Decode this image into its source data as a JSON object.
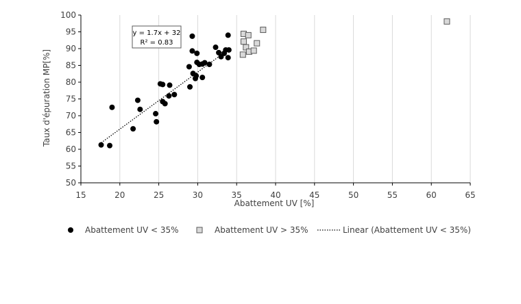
{
  "chart_data": {
    "type": "scatter",
    "xlabel": "Abattement UV [%]",
    "ylabel": "Taux d'épuration MP[%]",
    "xlim": [
      15,
      65
    ],
    "ylim": [
      50,
      100
    ],
    "x_ticks": [
      15,
      20,
      25,
      30,
      35,
      40,
      45,
      50,
      55,
      60,
      65
    ],
    "y_ticks": [
      50,
      55,
      60,
      65,
      70,
      75,
      80,
      85,
      90,
      95,
      100
    ],
    "grid": "vertical",
    "legend_position": "bottom",
    "series": [
      {
        "name": "Abattement UV < 35%",
        "marker": "circle",
        "color": "#000000",
        "points": [
          [
            17.6,
            61.3
          ],
          [
            18.7,
            61.1
          ],
          [
            19.0,
            72.5
          ],
          [
            21.7,
            66.1
          ],
          [
            22.3,
            74.6
          ],
          [
            22.6,
            71.9
          ],
          [
            24.6,
            70.6
          ],
          [
            24.7,
            68.2
          ],
          [
            25.2,
            79.5
          ],
          [
            25.5,
            79.3
          ],
          [
            25.5,
            74.2
          ],
          [
            25.8,
            73.6
          ],
          [
            26.3,
            75.9
          ],
          [
            26.4,
            79.1
          ],
          [
            27.0,
            76.3
          ],
          [
            28.9,
            84.6
          ],
          [
            29.0,
            78.6
          ],
          [
            29.3,
            93.7
          ],
          [
            29.3,
            89.3
          ],
          [
            29.4,
            82.6
          ],
          [
            29.7,
            81.1
          ],
          [
            29.8,
            81.9
          ],
          [
            29.9,
            88.6
          ],
          [
            29.9,
            85.9
          ],
          [
            30.2,
            85.3
          ],
          [
            30.6,
            81.4
          ],
          [
            30.6,
            85.4
          ],
          [
            30.9,
            85.8
          ],
          [
            31.5,
            85.3
          ],
          [
            32.3,
            90.4
          ],
          [
            32.7,
            88.8
          ],
          [
            33.0,
            87.6
          ],
          [
            33.4,
            88.6
          ],
          [
            33.6,
            89.6
          ],
          [
            33.9,
            87.3
          ],
          [
            33.9,
            94.0
          ],
          [
            34.0,
            89.6
          ]
        ]
      },
      {
        "name": "Abattement UV > 35%",
        "marker": "square",
        "color": "#d9d9d9",
        "points": [
          [
            35.8,
            88.2
          ],
          [
            35.9,
            94.4
          ],
          [
            35.9,
            92.1
          ],
          [
            36.2,
            90.4
          ],
          [
            36.5,
            94.0
          ],
          [
            36.6,
            89.1
          ],
          [
            37.2,
            89.4
          ],
          [
            37.6,
            91.6
          ],
          [
            38.4,
            95.6
          ],
          [
            62.0,
            98.1
          ]
        ]
      }
    ],
    "trendline": {
      "name": "Linear (Abattement UV < 35%)",
      "style": "dotted",
      "x_range": [
        17.6,
        34.0
      ],
      "equation": "y = 1.7x + 32",
      "r_squared": "R² = 0.83"
    }
  }
}
